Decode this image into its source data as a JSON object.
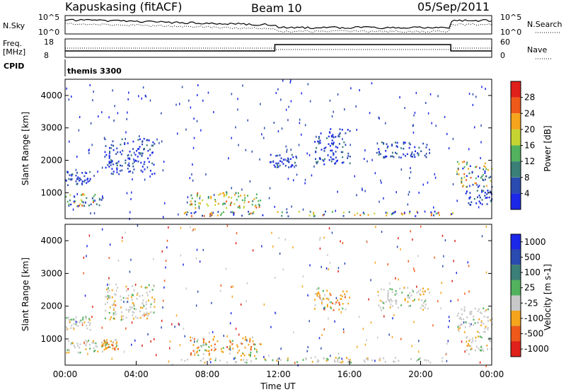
{
  "header": {
    "station": "Kapuskasing (fitACF)",
    "beam": "Beam 10",
    "date": "05/Sep/2011"
  },
  "strip": {
    "nsky_label": "N.Sky",
    "nsky_ticks": [
      "10^5",
      "10^0"
    ],
    "nsearch_label": "N.Search",
    "nsearch_ticks": [
      "10^5",
      "10^0"
    ],
    "freq_label": "Freq.",
    "freq_unit": "[MHz]",
    "freq_ticks": [
      "18",
      "8"
    ],
    "nave_label": "Nave",
    "nave_ticks": [
      "60",
      "0"
    ],
    "cpid_label": "CPID",
    "cpid_value": "themis 3300"
  },
  "x_axis": {
    "title": "Time UT",
    "ticks": [
      "00:00",
      "04:00",
      "08:00",
      "12:00",
      "16:00",
      "20:00",
      "00:00"
    ]
  },
  "chart_data": [
    {
      "type": "heatmap",
      "panel": "power",
      "ylabel": "Slant Range [km]",
      "yticks": [
        "1000",
        "2000",
        "3000",
        "4000"
      ],
      "ylim": [
        200,
        4500
      ],
      "xlim": [
        0,
        24
      ],
      "colorbar": {
        "label": "Power [dB]",
        "ticks": [
          "4",
          "8",
          "12",
          "16",
          "20",
          "24",
          "28"
        ],
        "colors": [
          "#1c28e8",
          "#2a4bb0",
          "#3a7f78",
          "#52b25e",
          "#c6d433",
          "#f5a51c",
          "#ee5a1a",
          "#e0201a"
        ]
      },
      "regions": [
        {
          "t": [
            0.0,
            1.4
          ],
          "r": [
            1250,
            1700
          ],
          "level": "low"
        },
        {
          "t": [
            0.0,
            2.1
          ],
          "r": [
            600,
            1000
          ],
          "level": "mixed"
        },
        {
          "t": [
            2.2,
            5.0
          ],
          "r": [
            1600,
            2700
          ],
          "level": "low"
        },
        {
          "t": [
            7.0,
            11.0
          ],
          "r": [
            550,
            1050
          ],
          "level": "high"
        },
        {
          "t": [
            6.5,
            22.0
          ],
          "r": [
            300,
            450
          ],
          "level": "mixed"
        },
        {
          "t": [
            11.5,
            13.0
          ],
          "r": [
            1800,
            2200
          ],
          "level": "low"
        },
        {
          "t": [
            14.0,
            16.0
          ],
          "r": [
            1900,
            3000
          ],
          "level": "low"
        },
        {
          "t": [
            17.5,
            20.5
          ],
          "r": [
            2100,
            2600
          ],
          "level": "low"
        },
        {
          "t": [
            22.0,
            24.0
          ],
          "r": [
            1200,
            2000
          ],
          "level": "mixed"
        },
        {
          "t": [
            22.5,
            24.0
          ],
          "r": [
            650,
            1100
          ],
          "level": "low"
        }
      ]
    },
    {
      "type": "heatmap",
      "panel": "velocity",
      "ylabel": "Slant Range [km]",
      "yticks": [
        "1000",
        "2000",
        "3000",
        "4000"
      ],
      "ylim": [
        200,
        4500
      ],
      "xlim": [
        0,
        24
      ],
      "colorbar": {
        "label": "Velocity [m s-1]",
        "ticks": [
          "1000",
          "500",
          "100",
          "25",
          "-25",
          "-100",
          "-500",
          "-1000"
        ],
        "colors": [
          "#1c28e8",
          "#2a4bb0",
          "#3a7f78",
          "#52b25e",
          "#c8c8c8",
          "#f5a51c",
          "#ee5a1a",
          "#e0201a"
        ]
      },
      "regions": [
        {
          "t": [
            0.0,
            1.4
          ],
          "r": [
            1300,
            1700
          ],
          "level": "gray"
        },
        {
          "t": [
            0.0,
            2.1
          ],
          "r": [
            600,
            1000
          ],
          "level": "gray"
        },
        {
          "t": [
            2.0,
            3.0
          ],
          "r": [
            700,
            1000
          ],
          "level": "orange"
        },
        {
          "t": [
            2.2,
            5.0
          ],
          "r": [
            1600,
            2700
          ],
          "level": "gray"
        },
        {
          "t": [
            7.0,
            11.0
          ],
          "r": [
            500,
            1100
          ],
          "level": "orange"
        },
        {
          "t": [
            6.5,
            22.0
          ],
          "r": [
            300,
            450
          ],
          "level": "gray"
        },
        {
          "t": [
            14.0,
            16.0
          ],
          "r": [
            1900,
            2600
          ],
          "level": "orange"
        },
        {
          "t": [
            17.5,
            20.5
          ],
          "r": [
            1900,
            2600
          ],
          "level": "gray"
        },
        {
          "t": [
            22.0,
            24.0
          ],
          "r": [
            1200,
            2000
          ],
          "level": "gray"
        },
        {
          "t": [
            22.5,
            24.0
          ],
          "r": [
            650,
            1100
          ],
          "level": "gray"
        }
      ]
    }
  ]
}
